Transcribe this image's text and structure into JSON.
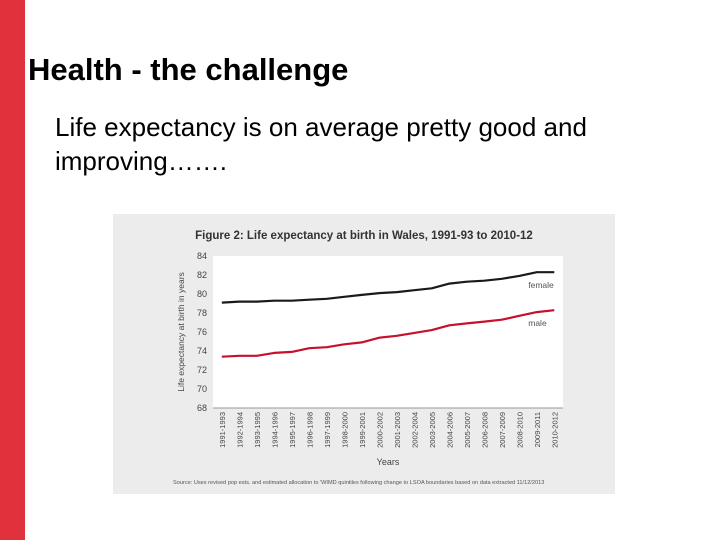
{
  "slide": {
    "title": "Health - the challenge",
    "body": "Life expectancy is on average pretty good and improving……."
  },
  "colors": {
    "accent_bar": "#e0313c",
    "female_line": "#1a1a1a",
    "male_line": "#c8102e",
    "figure_background": "#ececec",
    "plot_background": "#ffffff"
  },
  "chart_data": {
    "type": "line",
    "title": "Figure 2: Life expectancy at birth in Wales, 1991-93 to 2010-12",
    "xlabel": "Years",
    "ylabel": "Life expectancy at birth in years",
    "ylim": [
      68,
      84
    ],
    "yticks": [
      68,
      70,
      72,
      74,
      76,
      78,
      80,
      82,
      84
    ],
    "grid": false,
    "legend": "inline labels at line ends",
    "categories": [
      "1991-1993",
      "1992-1994",
      "1993-1995",
      "1994-1996",
      "1995-1997",
      "1996-1998",
      "1997-1999",
      "1998-2000",
      "1999-2001",
      "2000-2002",
      "2001-2003",
      "2002-2004",
      "2003-2005",
      "2004-2006",
      "2005-2007",
      "2006-2008",
      "2007-2009",
      "2008-2010",
      "2009-2011",
      "2010-2012"
    ],
    "series": [
      {
        "name": "female",
        "values": [
          79.1,
          79.2,
          79.2,
          79.3,
          79.3,
          79.4,
          79.5,
          79.7,
          79.9,
          80.1,
          80.2,
          80.4,
          80.6,
          81.1,
          81.3,
          81.4,
          81.6,
          81.9,
          82.3,
          82.3
        ]
      },
      {
        "name": "male",
        "values": [
          73.4,
          73.5,
          73.5,
          73.8,
          73.9,
          74.3,
          74.4,
          74.7,
          74.9,
          75.4,
          75.6,
          75.9,
          76.2,
          76.7,
          76.9,
          77.1,
          77.3,
          77.7,
          78.1,
          78.3
        ]
      }
    ],
    "source": "Source: Uses revised pop ests. and estimated allocation to 'WIMD quintiles following change to LSOA boundaries based on data extracted 11/12/2013"
  }
}
